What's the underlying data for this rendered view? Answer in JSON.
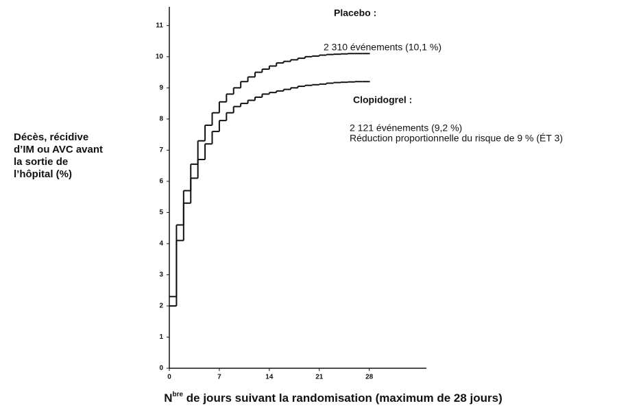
{
  "chart_data": {
    "type": "step",
    "y_label": [
      "Décès, récidive",
      "d’IM ou AVC avant",
      "la sortie de",
      "l’hôpital (%)"
    ],
    "x_label": {
      "main": "N",
      "sup": "bre",
      "rest": " de jours suivant la randomisation (maximum de 28 jours)"
    },
    "x": [
      0,
      1,
      2,
      3,
      4,
      5,
      6,
      7,
      8,
      9,
      10,
      11,
      12,
      13,
      14,
      15,
      16,
      17,
      18,
      19,
      20,
      21,
      22,
      23,
      24,
      25,
      26,
      27,
      28
    ],
    "series": [
      {
        "name": "Placebo :",
        "color": "#111111",
        "note": [
          "2 310 événements (10,1 %)"
        ],
        "values": [
          2.3,
          4.6,
          5.7,
          6.55,
          7.3,
          7.8,
          8.2,
          8.55,
          8.8,
          9.0,
          9.2,
          9.35,
          9.5,
          9.6,
          9.7,
          9.8,
          9.85,
          9.9,
          9.95,
          10.0,
          10.02,
          10.05,
          10.07,
          10.08,
          10.09,
          10.1,
          10.1,
          10.1,
          10.1
        ]
      },
      {
        "name": "Clopidogrel :",
        "color": "#111111",
        "note": [
          "2 121 événements (9,2 %)",
          "Réduction proportionnelle du risque de 9 % (ÉT 3)"
        ],
        "values": [
          2.0,
          4.1,
          5.3,
          6.1,
          6.7,
          7.2,
          7.6,
          7.95,
          8.2,
          8.4,
          8.5,
          8.6,
          8.7,
          8.8,
          8.85,
          8.9,
          8.95,
          9.0,
          9.05,
          9.08,
          9.1,
          9.12,
          9.15,
          9.17,
          9.18,
          9.19,
          9.2,
          9.2,
          9.2
        ]
      }
    ],
    "xlim": [
      0,
      36
    ],
    "ylim": [
      0,
      11.6
    ],
    "xticks": [
      0,
      7,
      14,
      21,
      28
    ],
    "yticks": [
      0,
      1,
      2,
      3,
      4,
      5,
      6,
      7,
      8,
      9,
      10,
      11
    ]
  }
}
